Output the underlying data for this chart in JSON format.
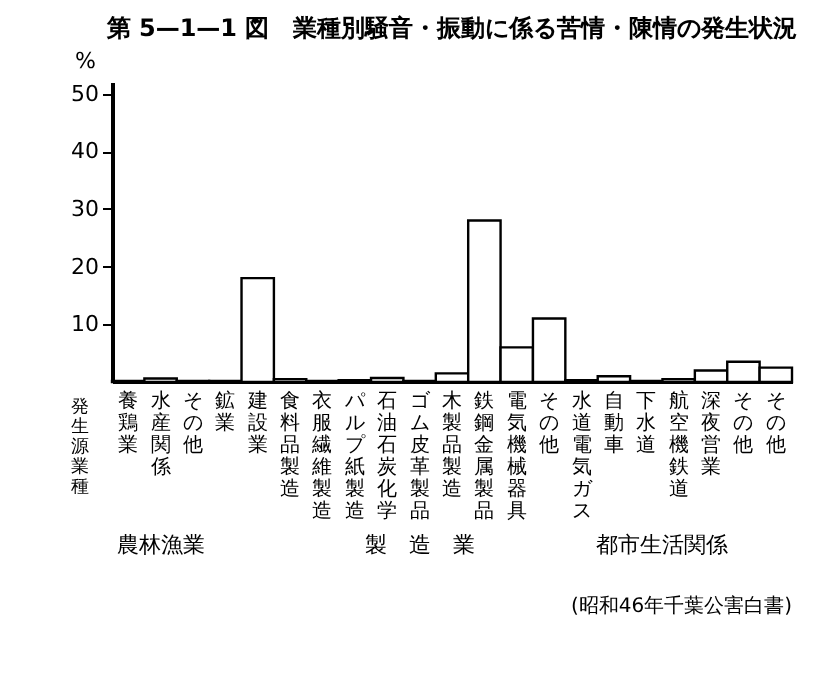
{
  "chart_data": {
    "type": "bar",
    "title": "第 5—1—1 図　業種別騒音・振動に係る苦情・陳情の発生状況",
    "ylabel": "%",
    "xlabel": "発生源業種",
    "categories": [
      "養鶏業",
      "水産関係",
      "その他",
      "鉱業",
      "建設業",
      "食料品製造",
      "衣服繊維製造",
      "パルプ紙製造",
      "石油石炭化学",
      "ゴム皮革製品",
      "木製品製造",
      "鉄鋼金属製品",
      "電気機械器具",
      "その他",
      "水道電気ガス",
      "自動車",
      "下水道",
      "航空機鉄道",
      "深夜営業",
      "その他",
      "その他"
    ],
    "values": [
      0.2,
      0.6,
      0.2,
      0.2,
      18,
      0.5,
      0.2,
      0.3,
      0.7,
      0.2,
      1.5,
      28,
      6,
      11,
      0.3,
      1,
      0.2,
      0.5,
      2,
      3.5,
      2.5
    ],
    "color": "#ffffff",
    "ylim": [
      0,
      52
    ],
    "yticks": [
      10,
      20,
      30,
      40,
      50
    ],
    "grid": false,
    "annotations": [
      "農林漁業",
      "製　造　業",
      "都市生活関係",
      "(昭和46年千葉公害白書)"
    ]
  }
}
